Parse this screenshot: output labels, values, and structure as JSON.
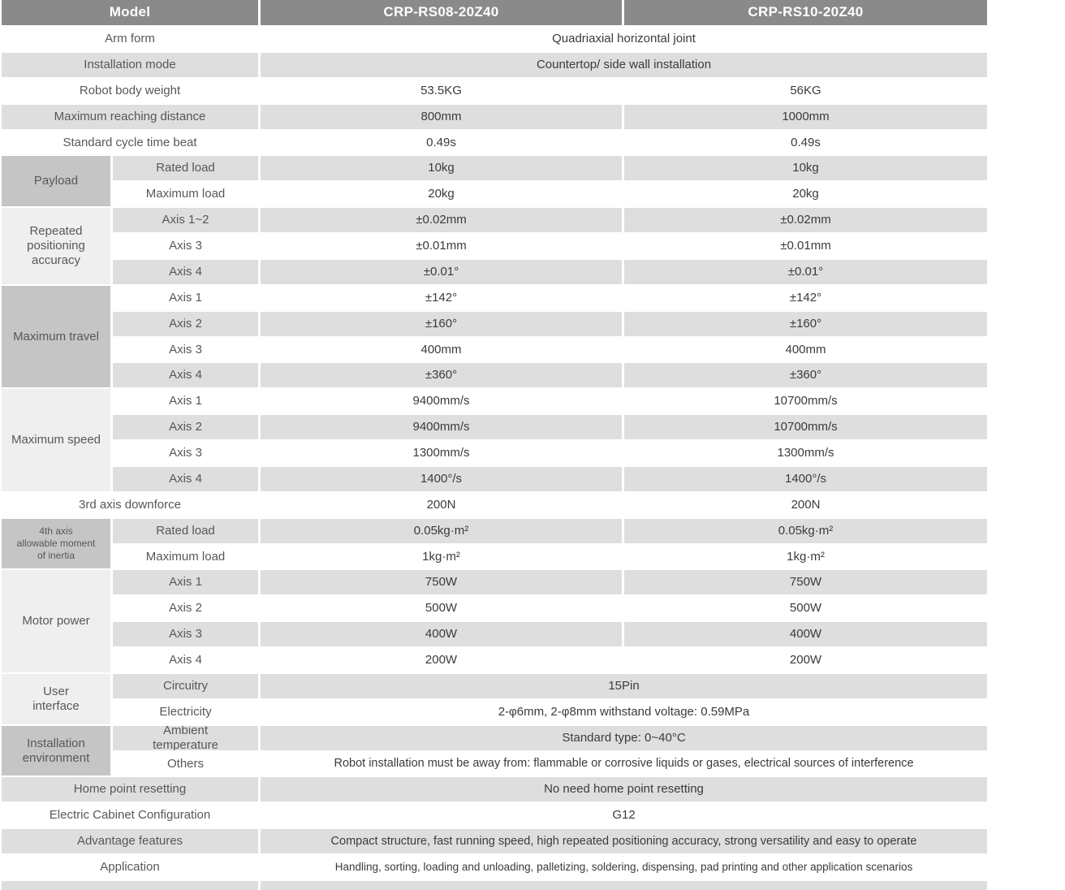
{
  "colors": {
    "header_bg": "#8a8a8a",
    "row_alt_bg": "#dedede",
    "category_dark_bg": "#c5c5c5",
    "category_light_bg": "#f0efef",
    "label_text": "#595757",
    "value_text": "#3e3a39",
    "header_text": "#ffffff"
  },
  "table": {
    "header": {
      "model": "Model",
      "models": [
        "CRP-RS08-20Z40",
        "CRP-RS10-20Z40"
      ]
    },
    "rows": {
      "arm_form": {
        "label": "Arm form",
        "value": "Quadriaxial horizontal joint"
      },
      "installation_mode": {
        "label": "Installation mode",
        "value": "Countertop/ side wall installation"
      },
      "robot_body_weight": {
        "label": "Robot body weight",
        "v1": "53.5KG",
        "v2": "56KG"
      },
      "max_reaching_distance": {
        "label": "Maximum reaching distance",
        "v1": "800mm",
        "v2": "1000mm"
      },
      "standard_cycle_time": {
        "label": "Standard cycle time beat",
        "v1": "0.49s",
        "v2": "0.49s"
      },
      "payload": {
        "label": "Payload",
        "rated_load": {
          "label": "Rated load",
          "v1": "10kg",
          "v2": "10kg"
        },
        "maximum_load": {
          "label": "Maximum load",
          "v1": "20kg",
          "v2": "20kg"
        }
      },
      "repeated_positioning_accuracy": {
        "label": "Repeated\npositioning\naccuracy",
        "axis_1_2": {
          "label": "Axis 1~2",
          "v1": "±0.02mm",
          "v2": "±0.02mm"
        },
        "axis_3": {
          "label": "Axis 3",
          "v1": "±0.01mm",
          "v2": "±0.01mm"
        },
        "axis_4": {
          "label": "Axis 4",
          "v1": "±0.01°",
          "v2": "±0.01°"
        }
      },
      "maximum_travel": {
        "label": "Maximum travel",
        "axis_1": {
          "label": "Axis 1",
          "v1": "±142°",
          "v2": "±142°"
        },
        "axis_2": {
          "label": "Axis 2",
          "v1": "±160°",
          "v2": "±160°"
        },
        "axis_3": {
          "label": "Axis 3",
          "v1": "400mm",
          "v2": "400mm"
        },
        "axis_4": {
          "label": "Axis 4",
          "v1": "±360°",
          "v2": "±360°"
        }
      },
      "maximum_speed": {
        "label": "Maximum speed",
        "axis_1": {
          "label": "Axis 1",
          "v1": "9400mm/s",
          "v2": "10700mm/s"
        },
        "axis_2": {
          "label": "Axis 2",
          "v1": "9400mm/s",
          "v2": "10700mm/s"
        },
        "axis_3": {
          "label": "Axis 3",
          "v1": "1300mm/s",
          "v2": "1300mm/s"
        },
        "axis_4": {
          "label": "Axis 4",
          "v1": "1400°/s",
          "v2": "1400°/s"
        }
      },
      "third_axis_downforce": {
        "label": "3rd axis downforce",
        "v1": "200N",
        "v2": "200N"
      },
      "fourth_axis_inertia": {
        "label": "4th axis\nallowable moment\nof inertia",
        "rated_load": {
          "label": "Rated load",
          "v1": "0.05kg·m²",
          "v2": "0.05kg·m²"
        },
        "maximum_load": {
          "label": "Maximum load",
          "v1": "1kg·m²",
          "v2": "1kg·m²"
        }
      },
      "motor_power": {
        "label": "Motor power",
        "axis_1": {
          "label": "Axis 1",
          "v1": "750W",
          "v2": "750W"
        },
        "axis_2": {
          "label": "Axis 2",
          "v1": "500W",
          "v2": "500W"
        },
        "axis_3": {
          "label": "Axis 3",
          "v1": "400W",
          "v2": "400W"
        },
        "axis_4": {
          "label": "Axis 4",
          "v1": "200W",
          "v2": "200W"
        }
      },
      "user_interface": {
        "label": "User\ninterface",
        "circuitry": {
          "label": "Circuitry",
          "value": "15Pin"
        },
        "electricity": {
          "label": "Electricity",
          "value": "2-φ6mm, 2-φ8mm withstand voltage: 0.59MPa"
        }
      },
      "installation_environment": {
        "label": "Installation\nenvironment",
        "ambient_temperature": {
          "label": "Ambient\ntemperature",
          "value": "Standard type: 0~40°C"
        },
        "others": {
          "label": "Others",
          "value": "Robot installation must be away from: flammable or corrosive liquids or gases, electrical sources of interference"
        }
      },
      "home_point_resetting": {
        "label": "Home point resetting",
        "value": "No need home point resetting"
      },
      "electric_cabinet": {
        "label": "Electric Cabinet Configuration",
        "value": "G12"
      },
      "advantage_features": {
        "label": "Advantage features",
        "value": "Compact structure, fast running speed, high repeated positioning accuracy, strong versatility and easy to operate"
      },
      "application": {
        "label": "Application",
        "value": "Handling, sorting, loading and unloading, palletizing, soldering, dispensing, pad printing and other application scenarios"
      }
    }
  }
}
